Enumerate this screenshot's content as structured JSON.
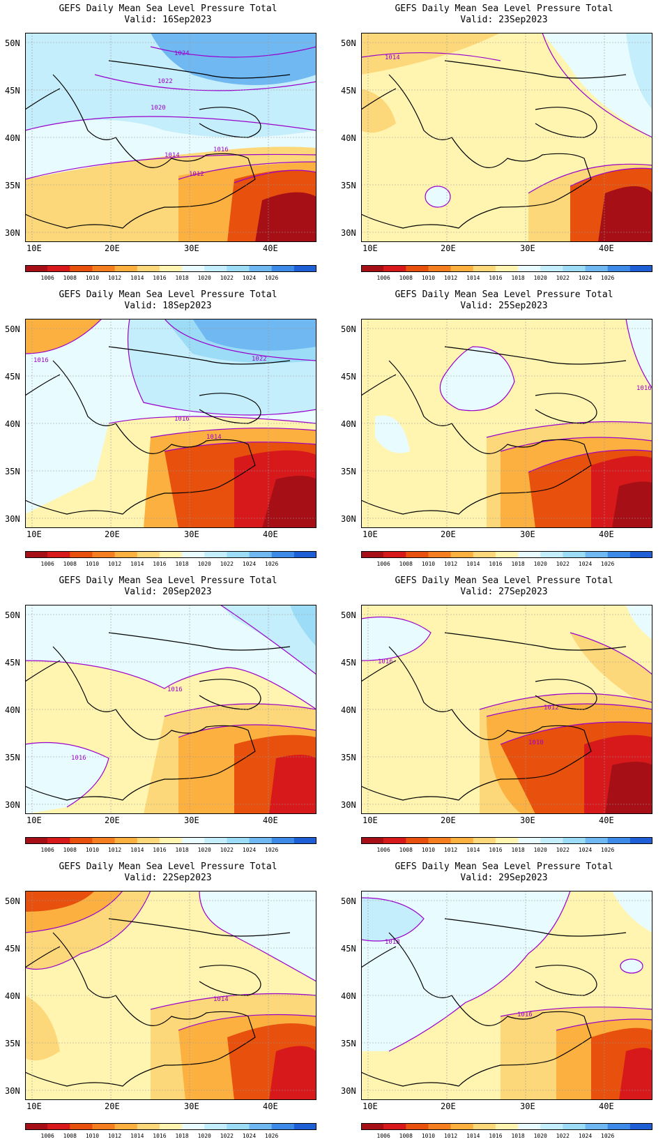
{
  "colorbar": {
    "labels": [
      "1006",
      "1008",
      "1010",
      "1012",
      "1014",
      "1016",
      "1018",
      "1020",
      "1022",
      "1024",
      "1026"
    ],
    "colors": [
      "#a50f15",
      "#d7191c",
      "#e8500e",
      "#f57f20",
      "#fbb040",
      "#fdd87a",
      "#fff5b0",
      "#e8fbff",
      "#c4eefb",
      "#9ddcf7",
      "#6fb8f2",
      "#3d8ae8",
      "#1f5fd6"
    ]
  },
  "axes": {
    "lat_labels": [
      "50N",
      "45N",
      "40N",
      "35N",
      "30N"
    ],
    "lon_labels": [
      "10E",
      "20E",
      "30E",
      "40E"
    ],
    "lat_values": [
      50,
      45,
      40,
      35,
      30
    ],
    "lon_values": [
      10,
      20,
      30,
      40
    ],
    "lon_range": [
      8,
      45
    ],
    "lat_range": [
      29,
      51
    ]
  },
  "panels": [
    {
      "title": "GEFS Daily Mean Sea Level Pressure Total",
      "valid": "Valid: 16Sep2023",
      "contour_labels": [
        "1024",
        "1022",
        "1020",
        "1016",
        "1014",
        "1012"
      ]
    },
    {
      "title": "GEFS Daily Mean Sea Level Pressure Total",
      "valid": "Valid: 23Sep2023",
      "contour_labels": [
        "1014"
      ]
    },
    {
      "title": "GEFS Daily Mean Sea Level Pressure Total",
      "valid": "Valid: 18Sep2023",
      "contour_labels": [
        "1016",
        "1022",
        "1016",
        "1014"
      ]
    },
    {
      "title": "GEFS Daily Mean Sea Level Pressure Total",
      "valid": "Valid: 25Sep2023",
      "contour_labels": [
        "1016"
      ]
    },
    {
      "title": "GEFS Daily Mean Sea Level Pressure Total",
      "valid": "Valid: 20Sep2023",
      "contour_labels": [
        "1016",
        "1016"
      ]
    },
    {
      "title": "GEFS Daily Mean Sea Level Pressure Total",
      "valid": "Valid: 27Sep2023",
      "contour_labels": [
        "1016",
        "1012",
        "1010"
      ]
    },
    {
      "title": "GEFS Daily Mean Sea Level Pressure Total",
      "valid": "Valid: 22Sep2023",
      "contour_labels": [
        "1014"
      ]
    },
    {
      "title": "GEFS Daily Mean Sea Level Pressure Total",
      "valid": "Valid: 29Sep2023",
      "contour_labels": [
        "1018",
        "1016"
      ]
    }
  ]
}
